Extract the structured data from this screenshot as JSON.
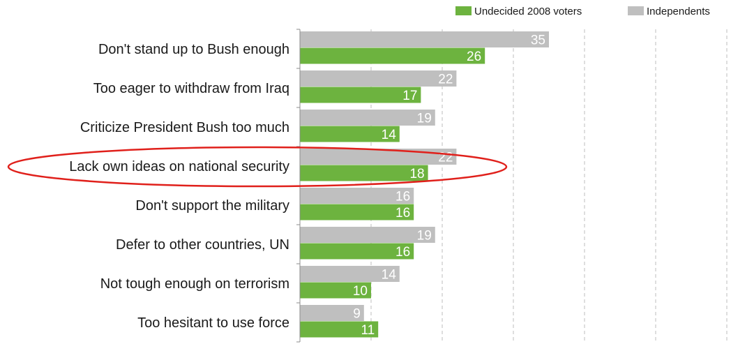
{
  "chart_data": {
    "type": "bar",
    "orientation": "horizontal",
    "categories": [
      "Don't stand up to Bush enough",
      "Too eager to withdraw from Iraq",
      "Criticize President Bush too much",
      "Lack own ideas on national security",
      "Don't support the military",
      "Defer to other countries, UN",
      "Not tough enough on terrorism",
      "Too hesitant to use force"
    ],
    "series": [
      {
        "name": "Independents",
        "values": [
          35,
          22,
          19,
          22,
          16,
          19,
          14,
          9
        ],
        "color": "#bfbfbf"
      },
      {
        "name": "Undecided 2008 voters",
        "values": [
          26,
          17,
          14,
          18,
          16,
          16,
          10,
          11
        ],
        "color": "#6db33f"
      }
    ],
    "legend_order": [
      "Undecided 2008 voters",
      "Independents"
    ],
    "legend_position": "top-right",
    "xlim": [
      0,
      60
    ],
    "grid": "vertical-dashed",
    "highlight": {
      "category": "Lack own ideas on national security",
      "shape": "ellipse",
      "color": "#e0201b"
    }
  }
}
